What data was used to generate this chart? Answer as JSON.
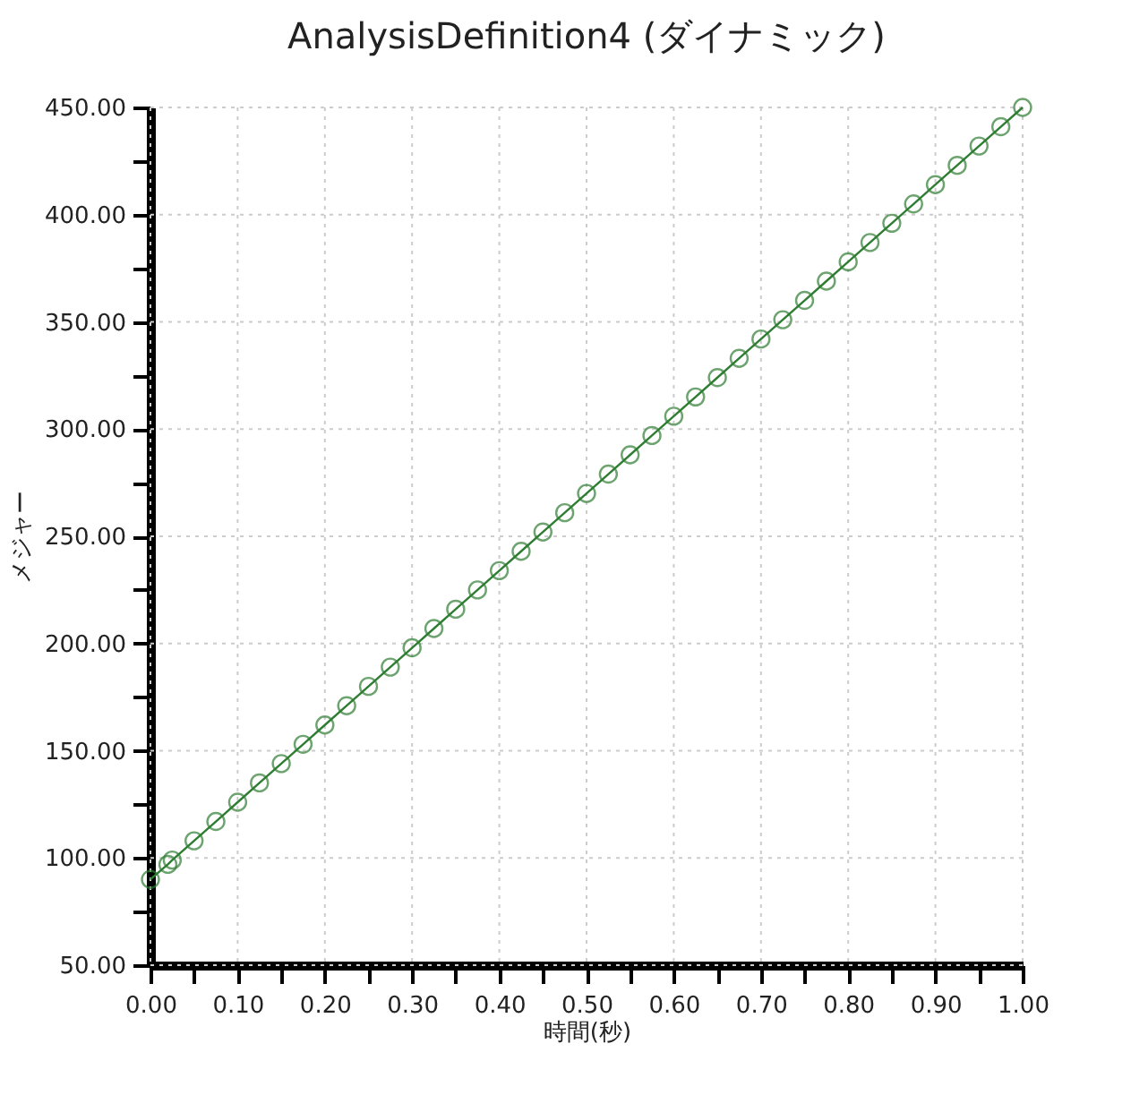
{
  "chart_data": {
    "type": "line",
    "title": "AnalysisDefinition4 (ダイナミック)",
    "xlabel": "時間(秒)",
    "ylabel": "メジャー",
    "x": [
      0,
      0.02,
      0.025,
      0.05,
      0.075,
      0.1,
      0.125,
      0.15,
      0.175,
      0.2,
      0.225,
      0.25,
      0.275,
      0.3,
      0.325,
      0.35,
      0.375,
      0.4,
      0.425,
      0.45,
      0.475,
      0.5,
      0.525,
      0.55,
      0.575,
      0.6,
      0.625,
      0.65,
      0.675,
      0.7,
      0.725,
      0.75,
      0.775,
      0.8,
      0.825,
      0.85,
      0.875,
      0.9,
      0.925,
      0.95,
      0.975,
      1
    ],
    "series": [
      {
        "color": "#2e7d32",
        "values": [
          90,
          97,
          99,
          108,
          117,
          126,
          135,
          144,
          153,
          162,
          171,
          180,
          189,
          198,
          207,
          216,
          225,
          234,
          243,
          252,
          261,
          270,
          279,
          288,
          297,
          306,
          315,
          324,
          333,
          342,
          351,
          360,
          369,
          378,
          387,
          396,
          405,
          414,
          423,
          432,
          441,
          450
        ]
      }
    ],
    "xlim": [
      0,
      1
    ],
    "ylim": [
      50,
      450
    ],
    "xticks": [
      {
        "value": 0,
        "label": "0.00"
      },
      {
        "value": 0.05,
        "label": null
      },
      {
        "value": 0.1,
        "label": "0.10"
      },
      {
        "value": 0.15,
        "label": null
      },
      {
        "value": 0.2,
        "label": "0.20"
      },
      {
        "value": 0.25,
        "label": null
      },
      {
        "value": 0.3,
        "label": "0.30"
      },
      {
        "value": 0.35,
        "label": null
      },
      {
        "value": 0.4,
        "label": "0.40"
      },
      {
        "value": 0.45,
        "label": null
      },
      {
        "value": 0.5,
        "label": "0.50"
      },
      {
        "value": 0.55,
        "label": null
      },
      {
        "value": 0.6,
        "label": "0.60"
      },
      {
        "value": 0.65,
        "label": null
      },
      {
        "value": 0.7,
        "label": "0.70"
      },
      {
        "value": 0.75,
        "label": null
      },
      {
        "value": 0.8,
        "label": "0.80"
      },
      {
        "value": 0.85,
        "label": null
      },
      {
        "value": 0.9,
        "label": "0.90"
      },
      {
        "value": 0.95,
        "label": null
      },
      {
        "value": 1,
        "label": "1.00"
      }
    ],
    "yticks": [
      {
        "value": 50,
        "label": "50.00"
      },
      {
        "value": 75,
        "label": null
      },
      {
        "value": 100,
        "label": "100.00"
      },
      {
        "value": 125,
        "label": null
      },
      {
        "value": 150,
        "label": "150.00"
      },
      {
        "value": 175,
        "label": null
      },
      {
        "value": 200,
        "label": "200.00"
      },
      {
        "value": 225,
        "label": null
      },
      {
        "value": 250,
        "label": "250.00"
      },
      {
        "value": 275,
        "label": null
      },
      {
        "value": 300,
        "label": "300.00"
      },
      {
        "value": 325,
        "label": null
      },
      {
        "value": 350,
        "label": "350.00"
      },
      {
        "value": 375,
        "label": null
      },
      {
        "value": 400,
        "label": "400.00"
      },
      {
        "value": 425,
        "label": null
      },
      {
        "value": 450,
        "label": "450.00"
      }
    ],
    "grid": true,
    "marker": "circle",
    "line_style": "solid"
  }
}
